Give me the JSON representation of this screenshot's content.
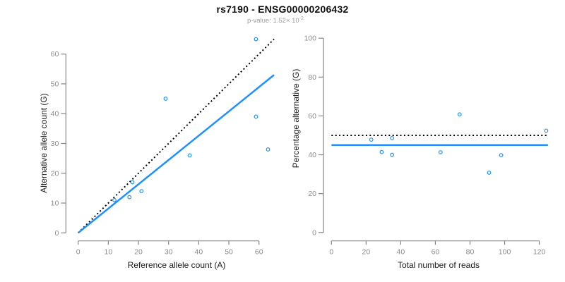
{
  "header": {
    "title": "rs7190 - ENSG00000206432",
    "subtitle": "p-value: 1.52× 10",
    "subtitle_exponent": "-2"
  },
  "colors": {
    "points": "#1E90FF",
    "fit_line": "#1E90FF",
    "reference_line": "#000000",
    "axis": "#878787",
    "tick_label": "#8c8c8c",
    "axis_label": "#1c1c1c",
    "title": "#111111",
    "subtitle": "#9b9b9b"
  },
  "chart_data": [
    {
      "type": "scatter",
      "title": "rs7190 - ENSG00000206432",
      "xlabel": "Reference allele count (A)",
      "ylabel": "Alternative allele count (G)",
      "xlim": [
        0,
        65
      ],
      "ylim": [
        0,
        66
      ],
      "xticks": [
        0,
        10,
        20,
        30,
        40,
        50,
        60
      ],
      "yticks": [
        0,
        10,
        20,
        30,
        40,
        50,
        60
      ],
      "grid": false,
      "legend": "none",
      "points": [
        [
          12,
          11
        ],
        [
          17,
          12
        ],
        [
          18,
          17
        ],
        [
          21,
          14
        ],
        [
          29,
          45
        ],
        [
          37,
          26
        ],
        [
          59,
          39
        ],
        [
          59,
          65
        ],
        [
          63,
          28
        ]
      ],
      "lines": [
        {
          "name": "identity-reference-line",
          "style": "dotted",
          "color": "#000000",
          "width": 2,
          "x": [
            0,
            65
          ],
          "y": [
            0,
            65
          ]
        },
        {
          "name": "fitted-regression-line",
          "style": "solid",
          "color": "#1E90FF",
          "width": 2.5,
          "x": [
            0,
            65
          ],
          "y": [
            0,
            53
          ]
        }
      ]
    },
    {
      "type": "scatter",
      "xlabel": "Total number of reads",
      "ylabel": "Percentage alternative (G)",
      "xlim": [
        0,
        125
      ],
      "ylim": [
        0,
        100
      ],
      "xticks": [
        0,
        20,
        40,
        60,
        80,
        100,
        120
      ],
      "yticks": [
        0,
        20,
        40,
        60,
        80,
        100
      ],
      "grid": false,
      "legend": "none",
      "points": [
        [
          23,
          47.8
        ],
        [
          29,
          41.4
        ],
        [
          35,
          48.6
        ],
        [
          35,
          40
        ],
        [
          63,
          41.3
        ],
        [
          74,
          60.8
        ],
        [
          91,
          30.8
        ],
        [
          98,
          39.8
        ],
        [
          124,
          52.4
        ]
      ],
      "lines": [
        {
          "name": "expected-50-percent-line",
          "style": "dotted",
          "color": "#000000",
          "width": 2,
          "x": [
            0,
            125
          ],
          "y": [
            50,
            50
          ]
        },
        {
          "name": "estimated-percentage-line",
          "style": "solid",
          "color": "#1E90FF",
          "width": 2.5,
          "x": [
            0,
            125
          ],
          "y": [
            45,
            45
          ]
        }
      ]
    }
  ]
}
